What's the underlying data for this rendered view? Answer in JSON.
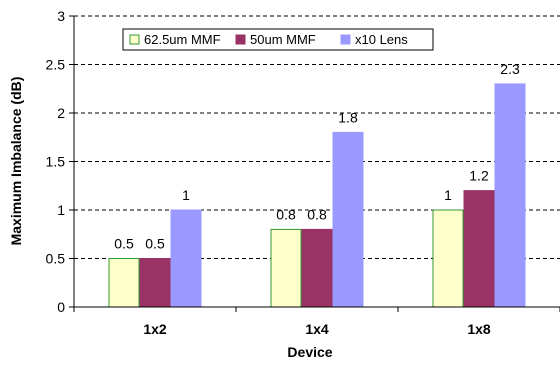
{
  "chart_data": {
    "type": "bar",
    "title": "",
    "xlabel": "Device",
    "ylabel": "Maximum Imbalance (dB)",
    "categories": [
      "1x2",
      "1x4",
      "1x8"
    ],
    "ylim": [
      0,
      3
    ],
    "yticks": [
      "0",
      "0.5",
      "1",
      "1.5",
      "2",
      "2.5",
      "3"
    ],
    "grid": "horizontal dashed",
    "legend_position": "top-left",
    "series": [
      {
        "name": "62.5um MMF",
        "values": [
          0.5,
          0.8,
          1
        ],
        "labels": [
          "0.5",
          "0.8",
          "1"
        ],
        "fill": "#ffffcc",
        "stroke": "#339933"
      },
      {
        "name": "50um MMF",
        "values": [
          0.5,
          0.8,
          1.2
        ],
        "labels": [
          "0.5",
          "0.8",
          "1.2"
        ],
        "fill": "#993366",
        "stroke": "#993366"
      },
      {
        "name": "x10 Lens",
        "values": [
          1,
          1.8,
          2.3
        ],
        "labels": [
          "1",
          "1.8",
          "2.3"
        ],
        "fill": "#9999ff",
        "stroke": "#9999ff"
      }
    ]
  }
}
